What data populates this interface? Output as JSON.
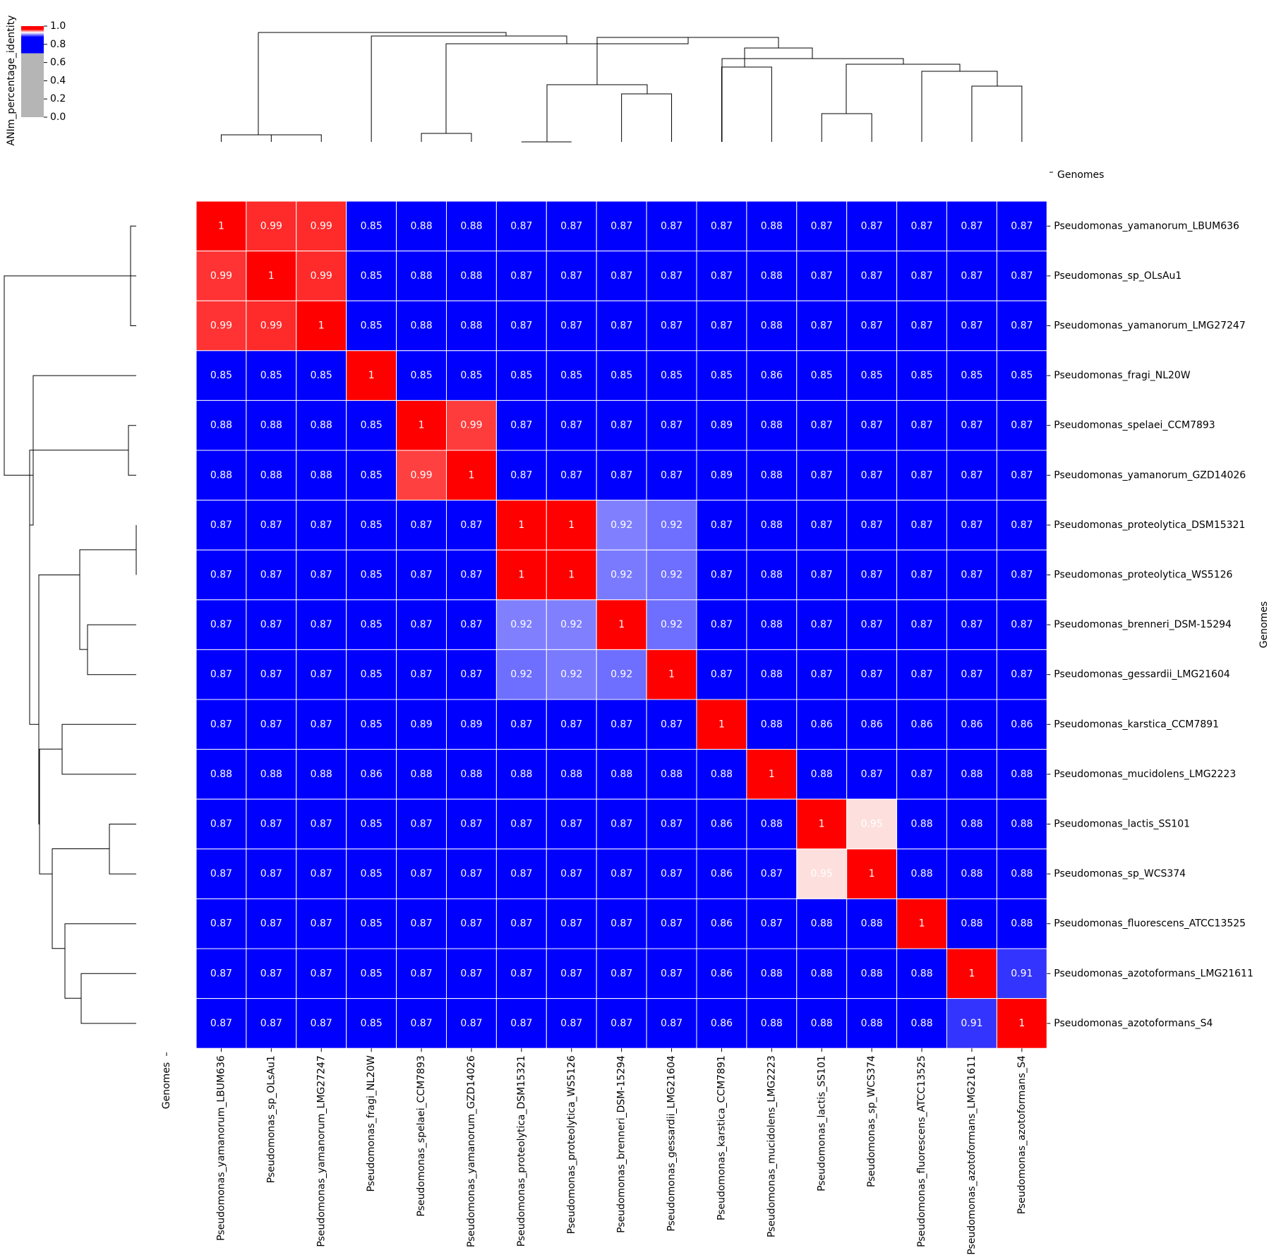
{
  "chart_data": {
    "type": "heatmap",
    "title": "",
    "xlabel": "Genomes",
    "ylabel": "Genomes",
    "row_header": "Genomes",
    "colorbar": {
      "label": "ANIm_percentage_identity",
      "ticks": [
        "0.0",
        "0.2",
        "0.4",
        "0.6",
        "0.8",
        "1.0"
      ],
      "range": [
        0,
        1
      ],
      "low_color": "#b5b5b5",
      "mid_color": "#0000ff",
      "high_color": "#ff0000"
    },
    "genomes": [
      "Pseudomonas_yamanorum_LBUM636",
      "Pseudomonas_sp_OLsAu1",
      "Pseudomonas_yamanorum_LMG27247",
      "Pseudomonas_fragi_NL20W",
      "Pseudomonas_spelaei_CCM7893",
      "Pseudomonas_yamanorum_GZD14026",
      "Pseudomonas_proteolytica_DSM15321",
      "Pseudomonas_proteolytica_WS5126",
      "Pseudomonas_brenneri_DSM-15294",
      "Pseudomonas_gessardii_LMG21604",
      "Pseudomonas_karstica_CCM7891",
      "Pseudomonas_mucidolens_LMG2223",
      "Pseudomonas_lactis_SS101",
      "Pseudomonas_sp_WCS374",
      "Pseudomonas_fluorescens_ATCC13525",
      "Pseudomonas_azotoformans_LMG21611",
      "Pseudomonas_azotoformans_S4"
    ],
    "labels": [
      [
        "1",
        "0.99",
        "0.99",
        "0.85",
        "0.88",
        "0.88",
        "0.87",
        "0.87",
        "0.87",
        "0.87",
        "0.87",
        "0.88",
        "0.87",
        "0.87",
        "0.87",
        "0.87",
        "0.87"
      ],
      [
        "0.99",
        "1",
        "0.99",
        "0.85",
        "0.88",
        "0.88",
        "0.87",
        "0.87",
        "0.87",
        "0.87",
        "0.87",
        "0.88",
        "0.87",
        "0.87",
        "0.87",
        "0.87",
        "0.87"
      ],
      [
        "0.99",
        "0.99",
        "1",
        "0.85",
        "0.88",
        "0.88",
        "0.87",
        "0.87",
        "0.87",
        "0.87",
        "0.87",
        "0.88",
        "0.87",
        "0.87",
        "0.87",
        "0.87",
        "0.87"
      ],
      [
        "0.85",
        "0.85",
        "0.85",
        "1",
        "0.85",
        "0.85",
        "0.85",
        "0.85",
        "0.85",
        "0.85",
        "0.85",
        "0.86",
        "0.85",
        "0.85",
        "0.85",
        "0.85",
        "0.85"
      ],
      [
        "0.88",
        "0.88",
        "0.88",
        "0.85",
        "1",
        "0.99",
        "0.87",
        "0.87",
        "0.87",
        "0.87",
        "0.89",
        "0.88",
        "0.87",
        "0.87",
        "0.87",
        "0.87",
        "0.87"
      ],
      [
        "0.88",
        "0.88",
        "0.88",
        "0.85",
        "0.99",
        "1",
        "0.87",
        "0.87",
        "0.87",
        "0.87",
        "0.89",
        "0.88",
        "0.87",
        "0.87",
        "0.87",
        "0.87",
        "0.87"
      ],
      [
        "0.87",
        "0.87",
        "0.87",
        "0.85",
        "0.87",
        "0.87",
        "1",
        "1",
        "0.92",
        "0.92",
        "0.87",
        "0.88",
        "0.87",
        "0.87",
        "0.87",
        "0.87",
        "0.87"
      ],
      [
        "0.87",
        "0.87",
        "0.87",
        "0.85",
        "0.87",
        "0.87",
        "1",
        "1",
        "0.92",
        "0.92",
        "0.87",
        "0.88",
        "0.87",
        "0.87",
        "0.87",
        "0.87",
        "0.87"
      ],
      [
        "0.87",
        "0.87",
        "0.87",
        "0.85",
        "0.87",
        "0.87",
        "0.92",
        "0.92",
        "1",
        "0.92",
        "0.87",
        "0.88",
        "0.87",
        "0.87",
        "0.87",
        "0.87",
        "0.87"
      ],
      [
        "0.87",
        "0.87",
        "0.87",
        "0.85",
        "0.87",
        "0.87",
        "0.92",
        "0.92",
        "0.92",
        "1",
        "0.87",
        "0.88",
        "0.87",
        "0.87",
        "0.87",
        "0.87",
        "0.87"
      ],
      [
        "0.87",
        "0.87",
        "0.87",
        "0.85",
        "0.89",
        "0.89",
        "0.87",
        "0.87",
        "0.87",
        "0.87",
        "1",
        "0.88",
        "0.86",
        "0.86",
        "0.86",
        "0.86",
        "0.86"
      ],
      [
        "0.88",
        "0.88",
        "0.88",
        "0.86",
        "0.88",
        "0.88",
        "0.88",
        "0.88",
        "0.88",
        "0.88",
        "0.88",
        "1",
        "0.88",
        "0.87",
        "0.87",
        "0.88",
        "0.88"
      ],
      [
        "0.87",
        "0.87",
        "0.87",
        "0.85",
        "0.87",
        "0.87",
        "0.87",
        "0.87",
        "0.87",
        "0.87",
        "0.86",
        "0.88",
        "1",
        "0.95",
        "0.88",
        "0.88",
        "0.88"
      ],
      [
        "0.87",
        "0.87",
        "0.87",
        "0.85",
        "0.87",
        "0.87",
        "0.87",
        "0.87",
        "0.87",
        "0.87",
        "0.86",
        "0.87",
        "0.95",
        "1",
        "0.88",
        "0.88",
        "0.88"
      ],
      [
        "0.87",
        "0.87",
        "0.87",
        "0.85",
        "0.87",
        "0.87",
        "0.87",
        "0.87",
        "0.87",
        "0.87",
        "0.86",
        "0.87",
        "0.88",
        "0.88",
        "1",
        "0.88",
        "0.88"
      ],
      [
        "0.87",
        "0.87",
        "0.87",
        "0.85",
        "0.87",
        "0.87",
        "0.87",
        "0.87",
        "0.87",
        "0.87",
        "0.86",
        "0.88",
        "0.88",
        "0.88",
        "0.88",
        "1",
        "0.91"
      ],
      [
        "0.87",
        "0.87",
        "0.87",
        "0.85",
        "0.87",
        "0.87",
        "0.87",
        "0.87",
        "0.87",
        "0.87",
        "0.86",
        "0.88",
        "0.88",
        "0.88",
        "0.88",
        "0.91",
        "1"
      ]
    ],
    "colors": [
      [
        "#ff0000",
        "#ff2a2a",
        "#ff2a2a",
        "#0000ff",
        "#0000ff",
        "#0000ff",
        "#0000ff",
        "#0000ff",
        "#0000ff",
        "#0000ff",
        "#0000ff",
        "#0000ff",
        "#0000ff",
        "#0000ff",
        "#0000ff",
        "#0000ff",
        "#0000ff"
      ],
      [
        "#ff3333",
        "#ff0000",
        "#ff2a2a",
        "#0000ff",
        "#0000ff",
        "#0000ff",
        "#0000ff",
        "#0000ff",
        "#0000ff",
        "#0000ff",
        "#0000ff",
        "#0000ff",
        "#0000ff",
        "#0000ff",
        "#0000ff",
        "#0000ff",
        "#0000ff"
      ],
      [
        "#ff3333",
        "#ff2a2a",
        "#ff0000",
        "#0000ff",
        "#0000ff",
        "#0000ff",
        "#0000ff",
        "#0000ff",
        "#0000ff",
        "#0000ff",
        "#0000ff",
        "#0000ff",
        "#0000ff",
        "#0000ff",
        "#0000ff",
        "#0000ff",
        "#0000ff"
      ],
      [
        "#0000ff",
        "#0000ff",
        "#0000ff",
        "#ff0000",
        "#0000ff",
        "#0000ff",
        "#0000ff",
        "#0000ff",
        "#0000ff",
        "#0000ff",
        "#0000ff",
        "#0000ff",
        "#0000ff",
        "#0000ff",
        "#0000ff",
        "#0000ff",
        "#0000ff"
      ],
      [
        "#0000ff",
        "#0000ff",
        "#0000ff",
        "#0000ff",
        "#ff0000",
        "#ff3c3c",
        "#0000ff",
        "#0000ff",
        "#0000ff",
        "#0000ff",
        "#0000ff",
        "#0000ff",
        "#0000ff",
        "#0000ff",
        "#0000ff",
        "#0000ff",
        "#0000ff"
      ],
      [
        "#0000ff",
        "#0000ff",
        "#0000ff",
        "#0000ff",
        "#ff4040",
        "#ff0000",
        "#0000ff",
        "#0000ff",
        "#0000ff",
        "#0000ff",
        "#0000ff",
        "#0000ff",
        "#0000ff",
        "#0000ff",
        "#0000ff",
        "#0000ff",
        "#0000ff"
      ],
      [
        "#0000ff",
        "#0000ff",
        "#0000ff",
        "#0000ff",
        "#0000ff",
        "#0000ff",
        "#ff0000",
        "#ff0000",
        "#8080ff",
        "#6e6eff",
        "#0000ff",
        "#0000ff",
        "#0000ff",
        "#0000ff",
        "#0000ff",
        "#0000ff",
        "#0000ff"
      ],
      [
        "#0000ff",
        "#0000ff",
        "#0000ff",
        "#0000ff",
        "#0000ff",
        "#0000ff",
        "#ff0000",
        "#ff0000",
        "#7a7aff",
        "#6e6eff",
        "#0000ff",
        "#0000ff",
        "#0000ff",
        "#0000ff",
        "#0000ff",
        "#0000ff",
        "#0000ff"
      ],
      [
        "#0000ff",
        "#0000ff",
        "#0000ff",
        "#0000ff",
        "#0000ff",
        "#0000ff",
        "#8080ff",
        "#8080ff",
        "#ff0000",
        "#6e6eff",
        "#0000ff",
        "#0000ff",
        "#0000ff",
        "#0000ff",
        "#0000ff",
        "#0000ff",
        "#0000ff"
      ],
      [
        "#0000ff",
        "#0000ff",
        "#0000ff",
        "#0000ff",
        "#0000ff",
        "#0000ff",
        "#6e6eff",
        "#7a7aff",
        "#6e6eff",
        "#ff0000",
        "#0000ff",
        "#0000ff",
        "#0000ff",
        "#0000ff",
        "#0000ff",
        "#0000ff",
        "#0000ff"
      ],
      [
        "#0000ff",
        "#0000ff",
        "#0000ff",
        "#0000ff",
        "#0000ff",
        "#0000ff",
        "#0000ff",
        "#0000ff",
        "#0000ff",
        "#0000ff",
        "#ff0000",
        "#0000ff",
        "#0000ff",
        "#0000ff",
        "#0000ff",
        "#0000ff",
        "#0000ff"
      ],
      [
        "#0000ff",
        "#0000ff",
        "#0000ff",
        "#0000ff",
        "#0000ff",
        "#0000ff",
        "#0000ff",
        "#0000ff",
        "#0000ff",
        "#0000ff",
        "#0000ff",
        "#ff0000",
        "#0000ff",
        "#0000ff",
        "#0000ff",
        "#0000ff",
        "#0000ff"
      ],
      [
        "#0000ff",
        "#0000ff",
        "#0000ff",
        "#0000ff",
        "#0000ff",
        "#0000ff",
        "#0000ff",
        "#0000ff",
        "#0000ff",
        "#0000ff",
        "#0000ff",
        "#0000ff",
        "#ff0000",
        "#fde0dd",
        "#0000ff",
        "#0000ff",
        "#0000ff"
      ],
      [
        "#0000ff",
        "#0000ff",
        "#0000ff",
        "#0000ff",
        "#0000ff",
        "#0000ff",
        "#0000ff",
        "#0000ff",
        "#0000ff",
        "#0000ff",
        "#0000ff",
        "#0000ff",
        "#fde0dd",
        "#ff0000",
        "#0000ff",
        "#0000ff",
        "#0000ff"
      ],
      [
        "#0000ff",
        "#0000ff",
        "#0000ff",
        "#0000ff",
        "#0000ff",
        "#0000ff",
        "#0000ff",
        "#0000ff",
        "#0000ff",
        "#0000ff",
        "#0000ff",
        "#0000ff",
        "#0000ff",
        "#0000ff",
        "#ff0000",
        "#0000ff",
        "#0000ff"
      ],
      [
        "#0000ff",
        "#0000ff",
        "#0000ff",
        "#0000ff",
        "#0000ff",
        "#0000ff",
        "#0000ff",
        "#0000ff",
        "#0000ff",
        "#0000ff",
        "#0000ff",
        "#0000ff",
        "#0000ff",
        "#0000ff",
        "#0000ff",
        "#ff0000",
        "#3434ff"
      ],
      [
        "#0000ff",
        "#0000ff",
        "#0000ff",
        "#0000ff",
        "#0000ff",
        "#0000ff",
        "#0000ff",
        "#0000ff",
        "#0000ff",
        "#0000ff",
        "#0000ff",
        "#0000ff",
        "#0000ff",
        "#0000ff",
        "#0000ff",
        "#3434ff",
        "#ff0000"
      ]
    ]
  }
}
